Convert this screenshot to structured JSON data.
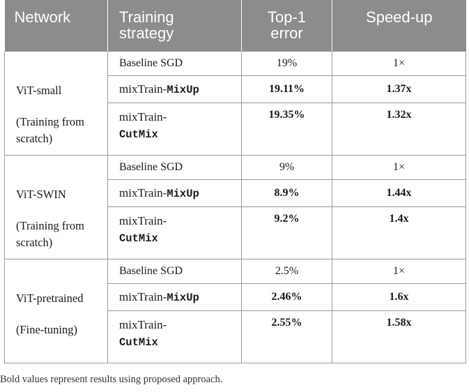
{
  "headers": [
    "Network",
    "Training strategy",
    "Top-1 error",
    "Speed-up"
  ],
  "groups": [
    {
      "network": "ViT-small",
      "note": "(Training from scratch)",
      "rows": [
        {
          "strategy_prefix": "Baseline SGD",
          "strategy_code": "",
          "error": "19%",
          "speedup": "1×"
        },
        {
          "strategy_prefix": "mixTrain-",
          "strategy_code": "MixUp",
          "error": "19.11%",
          "speedup": "1.37x"
        },
        {
          "strategy_prefix": "mixTrain-",
          "strategy_code": "CutMix",
          "error": "19.35%",
          "speedup": "1.32x"
        }
      ]
    },
    {
      "network": "ViT-SWIN",
      "note": "(Training from scratch)",
      "rows": [
        {
          "strategy_prefix": "Baseline SGD",
          "strategy_code": "",
          "error": "9%",
          "speedup": "1×"
        },
        {
          "strategy_prefix": "mixTrain-",
          "strategy_code": "MixUp",
          "error": "8.9%",
          "speedup": "1.44x"
        },
        {
          "strategy_prefix": "mixTrain-",
          "strategy_code": "CutMix",
          "error": "9.2%",
          "speedup": "1.4x"
        }
      ]
    },
    {
      "network": "ViT-pretrained",
      "note": "(Fine-tuning)",
      "rows": [
        {
          "strategy_prefix": "Baseline SGD",
          "strategy_code": "",
          "error": "2.5%",
          "speedup": "1×"
        },
        {
          "strategy_prefix": "mixTrain-",
          "strategy_code": "MixUp",
          "error": "2.46%",
          "speedup": "1.6x"
        },
        {
          "strategy_prefix": "mixTrain-",
          "strategy_code": "CutMix",
          "error": "2.55%",
          "speedup": "1.58x"
        }
      ]
    }
  ],
  "footnote": "Bold values represent results using proposed approach."
}
